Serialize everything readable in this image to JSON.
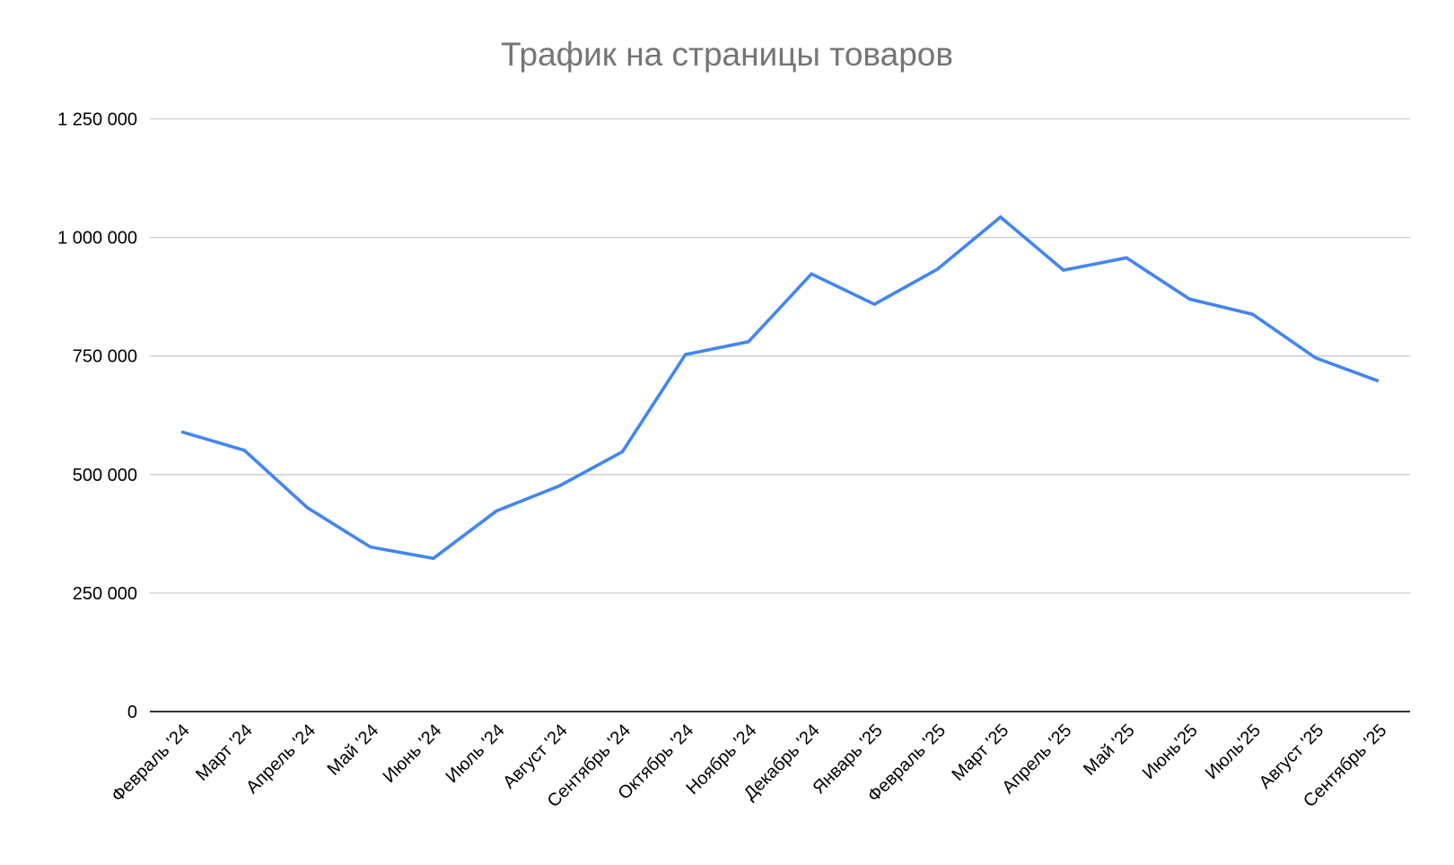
{
  "chart_data": {
    "type": "line",
    "title": "Трафик на страницы товаров",
    "xlabel": "",
    "ylabel": "",
    "ylim": [
      0,
      1250000
    ],
    "grid": true,
    "legend": null,
    "y_ticks": [
      0,
      250000,
      500000,
      750000,
      1000000,
      1250000
    ],
    "y_tick_labels": [
      "0",
      "250 000",
      "500 000",
      "750 000",
      "1 000 000",
      "1 250 000"
    ],
    "categories": [
      "Февраль '24",
      "Март '24",
      "Апрель '24",
      "Май '24",
      "Июнь '24",
      "Июль '24",
      "Август '24",
      "Сентябрь '24",
      "Октябрь '24",
      "Ноябрь '24",
      "Декабрь '24",
      "Январь '25",
      "Февраль '25",
      "Март '25",
      "Апрель '25",
      "Май '25",
      "Июнь'25",
      "Июль'25",
      "Август '25",
      "Сентябрь '25"
    ],
    "series": [
      {
        "name": "Трафик",
        "color": "#4285F4",
        "values": [
          590000,
          551000,
          430000,
          347000,
          323000,
          423000,
          476000,
          548000,
          753000,
          780000,
          923000,
          859000,
          933000,
          1043000,
          931000,
          957000,
          870000,
          838000,
          746000,
          697000
        ]
      }
    ]
  },
  "colors": {
    "title": "#757575",
    "grid": "#cccccc",
    "axis": "#333333",
    "tick_text": "#000000",
    "line": "#4285F4"
  }
}
